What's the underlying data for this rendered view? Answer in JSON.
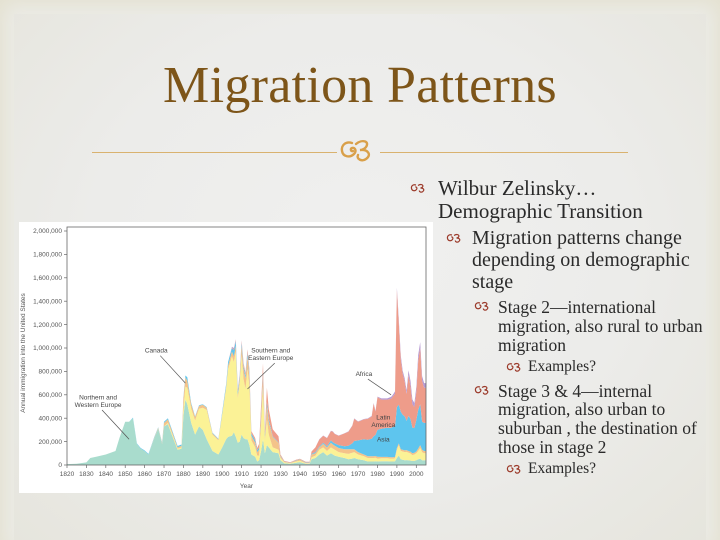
{
  "slide": {
    "title": "Migration Patterns",
    "ornament": "❧",
    "bullets": [
      {
        "level": 1,
        "text": "Wilbur Zelinsky… Demographic Transition"
      },
      {
        "level": 2,
        "text": "Migration patterns change depending on demographic stage"
      },
      {
        "level": 3,
        "text": "Stage 2—international migration, also rural to urban migration"
      },
      {
        "level": 4,
        "text": "Examples?"
      },
      {
        "level": 3,
        "text": "Stage 3 & 4—internal migration, also urban to suburban , the destination of those in stage 2"
      },
      {
        "level": 4,
        "text": "Examples?"
      }
    ],
    "bullet_marker": "σɣ",
    "colors": {
      "title": "#7d5519",
      "ornament": "#d9a04a",
      "marker": "#9b3a2a",
      "background_border": "#e4e1d0",
      "background_center": "#efefee"
    }
  },
  "chart_data": {
    "type": "area",
    "stacked": true,
    "title": "",
    "xlabel": "Year",
    "ylabel": "Annual immigration into the United States",
    "xlim": [
      1820,
      2005
    ],
    "ylim": [
      0,
      2000000
    ],
    "x_ticks": [
      1820,
      1830,
      1840,
      1850,
      1860,
      1870,
      1880,
      1890,
      1900,
      1910,
      1920,
      1930,
      1940,
      1950,
      1960,
      1970,
      1980,
      1990,
      2000
    ],
    "y_ticks": [
      0,
      200000,
      400000,
      600000,
      800000,
      1000000,
      1200000,
      1400000,
      1600000,
      1800000,
      2000000
    ],
    "y_tick_labels": [
      "0",
      "200,000",
      "400,000",
      "600,000",
      "800,000",
      "1,000,000",
      "1,200,000",
      "1,400,000",
      "1,600,000",
      "1,800,000",
      "2,000,000"
    ],
    "grid": false,
    "legend": "inline annotations",
    "x": [
      1820,
      1825,
      1830,
      1832,
      1835,
      1840,
      1845,
      1847,
      1850,
      1852,
      1854,
      1856,
      1858,
      1860,
      1862,
      1865,
      1867,
      1869,
      1870,
      1872,
      1874,
      1877,
      1879,
      1880,
      1881,
      1882,
      1884,
      1886,
      1888,
      1890,
      1892,
      1895,
      1898,
      1900,
      1902,
      1903,
      1905,
      1906,
      1907,
      1908,
      1909,
      1910,
      1911,
      1912,
      1913,
      1914,
      1915,
      1917,
      1918,
      1919,
      1920,
      1921,
      1922,
      1923,
      1924,
      1926,
      1929,
      1930,
      1932,
      1935,
      1938,
      1940,
      1943,
      1945,
      1946,
      1948,
      1950,
      1952,
      1954,
      1956,
      1957,
      1958,
      1960,
      1963,
      1965,
      1967,
      1968,
      1970,
      1973,
      1975,
      1977,
      1978,
      1979,
      1980,
      1982,
      1985,
      1987,
      1988,
      1989,
      1990,
      1991,
      1992,
      1993,
      1994,
      1995,
      1996,
      1997,
      1998,
      1999,
      2000,
      2001,
      2002,
      2003,
      2004,
      2005
    ],
    "series": [
      {
        "name": "Northern and Western Europe",
        "color": "#a9dccd",
        "values": [
          8000,
          10000,
          22000,
          60000,
          70000,
          90000,
          120000,
          230000,
          370000,
          370000,
          400000,
          180000,
          140000,
          120000,
          90000,
          230000,
          310000,
          180000,
          330000,
          350000,
          260000,
          130000,
          140000,
          420000,
          560000,
          520000,
          360000,
          260000,
          330000,
          300000,
          220000,
          120000,
          90000,
          150000,
          220000,
          240000,
          250000,
          280000,
          240000,
          190000,
          200000,
          260000,
          230000,
          220000,
          220000,
          170000,
          90000,
          70000,
          30000,
          40000,
          120000,
          220000,
          100000,
          170000,
          150000,
          110000,
          100000,
          40000,
          15000,
          10000,
          20000,
          25000,
          10000,
          10000,
          50000,
          60000,
          90000,
          110000,
          80000,
          100000,
          90000,
          80000,
          70000,
          60000,
          50000,
          55000,
          60000,
          50000,
          40000,
          30000,
          30000,
          30000,
          32000,
          30000,
          32000,
          32000,
          30000,
          30000,
          32000,
          60000,
          80000,
          50000,
          45000,
          40000,
          42000,
          40000,
          38000,
          35000,
          35000,
          40000,
          50000,
          55000,
          40000,
          40000,
          40000
        ]
      },
      {
        "name": "Southern and Eastern Europe",
        "color": "#fbf296",
        "values": [
          0,
          0,
          0,
          0,
          0,
          0,
          0,
          0,
          0,
          0,
          0,
          0,
          0,
          0,
          0,
          0,
          0,
          0,
          0,
          10000,
          15000,
          10000,
          10000,
          60000,
          110000,
          140000,
          120000,
          120000,
          150000,
          190000,
          250000,
          140000,
          120000,
          280000,
          430000,
          580000,
          680000,
          600000,
          730000,
          380000,
          500000,
          680000,
          500000,
          430000,
          600000,
          500000,
          120000,
          80000,
          50000,
          40000,
          230000,
          450000,
          110000,
          220000,
          110000,
          40000,
          30000,
          20000,
          8000,
          5000,
          10000,
          12000,
          5000,
          5000,
          15000,
          20000,
          40000,
          40000,
          40000,
          50000,
          50000,
          50000,
          40000,
          40000,
          45000,
          50000,
          50000,
          40000,
          35000,
          30000,
          30000,
          30000,
          30000,
          25000,
          25000,
          25000,
          25000,
          25000,
          25000,
          70000,
          90000,
          70000,
          70000,
          70000,
          70000,
          65000,
          60000,
          50000,
          55000,
          60000,
          70000,
          90000,
          70000,
          60000,
          60000
        ]
      },
      {
        "name": "Canada",
        "color": "#f4c38a",
        "values": [
          0,
          0,
          0,
          0,
          0,
          0,
          0,
          0,
          0,
          0,
          0,
          0,
          0,
          0,
          0,
          5000,
          8000,
          8000,
          30000,
          30000,
          20000,
          12000,
          15000,
          90000,
          80000,
          60000,
          40000,
          30000,
          25000,
          25000,
          20000,
          10000,
          10000,
          10000,
          20000,
          30000,
          40000,
          50000,
          50000,
          30000,
          40000,
          80000,
          90000,
          90000,
          110000,
          90000,
          40000,
          40000,
          30000,
          50000,
          80000,
          90000,
          30000,
          120000,
          110000,
          90000,
          60000,
          15000,
          5000,
          3000,
          8000,
          10000,
          5000,
          5000,
          25000,
          20000,
          20000,
          30000,
          30000,
          40000,
          35000,
          35000,
          35000,
          35000,
          40000,
          30000,
          25000,
          20000,
          15000,
          15000,
          15000,
          15000,
          15000,
          15000,
          12000,
          12000,
          12000,
          12000,
          12000,
          15000,
          15000,
          15000,
          15000,
          15000,
          15000,
          15000,
          15000,
          15000,
          15000,
          15000,
          20000,
          25000,
          20000,
          20000,
          20000
        ]
      },
      {
        "name": "Asia",
        "color": "#5ec5ee",
        "values": [
          0,
          0,
          0,
          0,
          0,
          0,
          0,
          0,
          0,
          0,
          5000,
          5000,
          5000,
          5000,
          5000,
          5000,
          5000,
          5000,
          10000,
          10000,
          10000,
          10000,
          10000,
          10000,
          15000,
          30000,
          10000,
          5000,
          5000,
          5000,
          5000,
          5000,
          5000,
          15000,
          20000,
          30000,
          30000,
          50000,
          40000,
          30000,
          20000,
          25000,
          25000,
          25000,
          30000,
          30000,
          20000,
          20000,
          15000,
          20000,
          25000,
          30000,
          20000,
          30000,
          25000,
          5000,
          5000,
          5000,
          2000,
          2000,
          2000,
          2000,
          2000,
          2000,
          5000,
          10000,
          8000,
          10000,
          10000,
          20000,
          20000,
          20000,
          25000,
          25000,
          30000,
          50000,
          70000,
          100000,
          130000,
          140000,
          150000,
          170000,
          180000,
          230000,
          240000,
          250000,
          250000,
          260000,
          260000,
          350000,
          330000,
          320000,
          300000,
          290000,
          250000,
          300000,
          280000,
          220000,
          210000,
          270000,
          330000,
          350000,
          240000,
          240000,
          240000
        ]
      },
      {
        "name": "Latin America",
        "color": "#ee9c8a",
        "values": [
          0,
          0,
          0,
          0,
          0,
          0,
          0,
          0,
          0,
          0,
          0,
          0,
          0,
          0,
          0,
          0,
          0,
          0,
          0,
          0,
          0,
          0,
          0,
          0,
          0,
          0,
          0,
          0,
          0,
          0,
          0,
          0,
          0,
          0,
          0,
          0,
          5000,
          10000,
          10000,
          10000,
          10000,
          15000,
          20000,
          20000,
          25000,
          25000,
          20000,
          20000,
          20000,
          30000,
          60000,
          80000,
          30000,
          120000,
          80000,
          60000,
          50000,
          10000,
          5000,
          3000,
          5000,
          5000,
          5000,
          5000,
          20000,
          40000,
          60000,
          60000,
          70000,
          80000,
          90000,
          80000,
          80000,
          110000,
          120000,
          150000,
          190000,
          160000,
          170000,
          180000,
          190000,
          280000,
          200000,
          280000,
          250000,
          240000,
          250000,
          260000,
          280000,
          1000000,
          700000,
          450000,
          350000,
          300000,
          230000,
          350000,
          280000,
          200000,
          180000,
          240000,
          420000,
          480000,
          350000,
          300000,
          300000
        ]
      },
      {
        "name": "Africa",
        "color": "#b79ad2",
        "values": [
          0,
          0,
          0,
          0,
          0,
          0,
          0,
          0,
          0,
          0,
          0,
          0,
          0,
          0,
          0,
          0,
          0,
          0,
          0,
          0,
          0,
          0,
          0,
          0,
          0,
          0,
          0,
          0,
          0,
          0,
          0,
          0,
          0,
          0,
          0,
          0,
          5000,
          10000,
          5000,
          5000,
          5000,
          5000,
          5000,
          5000,
          5000,
          5000,
          0,
          0,
          0,
          0,
          0,
          0,
          0,
          0,
          0,
          0,
          0,
          0,
          0,
          0,
          0,
          0,
          0,
          0,
          0,
          0,
          2000,
          2000,
          2000,
          2000,
          2000,
          2000,
          2000,
          2000,
          2000,
          3000,
          3000,
          3000,
          3000,
          3000,
          5000,
          5000,
          5000,
          5000,
          10000,
          10000,
          15000,
          15000,
          20000,
          20000,
          30000,
          30000,
          25000,
          25000,
          30000,
          40000,
          45000,
          40000,
          35000,
          40000,
          50000,
          50000,
          40000,
          40000,
          40000
        ]
      }
    ],
    "annotations": [
      {
        "text": [
          "Northern and",
          "Western Europe"
        ],
        "x": 1836,
        "y": 560000,
        "target": [
          1852,
          220000
        ]
      },
      {
        "text": [
          "Canada"
        ],
        "x": 1866,
        "y": 960000,
        "target": [
          1881,
          700000
        ]
      },
      {
        "text": [
          "Southern and",
          "Eastern Europe"
        ],
        "x": 1925,
        "y": 960000,
        "target": [
          1913,
          650000
        ]
      },
      {
        "text": [
          "Africa"
        ],
        "x": 1973,
        "y": 760000,
        "target": [
          1987,
          600000
        ]
      },
      {
        "text": [
          "Latin",
          "America"
        ],
        "x": 1983,
        "y": 390000,
        "target": null
      },
      {
        "text": [
          "Asia"
        ],
        "x": 1983,
        "y": 200000,
        "target": null
      }
    ]
  }
}
